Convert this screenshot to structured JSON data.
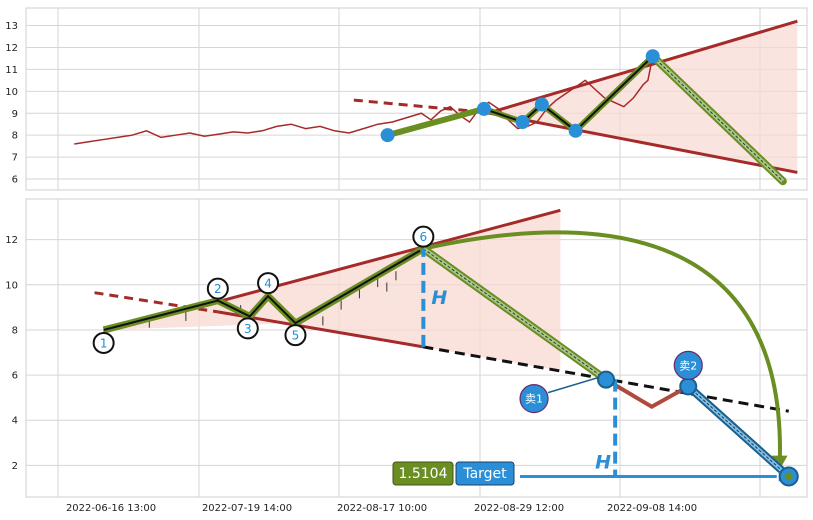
{
  "chart_data": [
    {
      "type": "line",
      "panel": "top",
      "ylim": [
        5.5,
        13.8
      ],
      "yticks": [
        6,
        7,
        8,
        9,
        10,
        11,
        12,
        13
      ],
      "grid": true,
      "price_series": [
        [
          0,
          7.6
        ],
        [
          3,
          7.7
        ],
        [
          6,
          7.8
        ],
        [
          9,
          7.9
        ],
        [
          12,
          8.0
        ],
        [
          15,
          8.2
        ],
        [
          18,
          7.9
        ],
        [
          21,
          8.0
        ],
        [
          24,
          8.1
        ],
        [
          27,
          7.95
        ],
        [
          30,
          8.05
        ],
        [
          33,
          8.15
        ],
        [
          36,
          8.1
        ],
        [
          39,
          8.2
        ],
        [
          42,
          8.4
        ],
        [
          45,
          8.5
        ],
        [
          48,
          8.3
        ],
        [
          51,
          8.4
        ],
        [
          54,
          8.2
        ],
        [
          57,
          8.1
        ],
        [
          60,
          8.3
        ],
        [
          63,
          8.5
        ],
        [
          66,
          8.6
        ],
        [
          69,
          8.8
        ],
        [
          72,
          9.0
        ],
        [
          74,
          8.7
        ],
        [
          76,
          9.1
        ],
        [
          78,
          9.3
        ],
        [
          80,
          8.9
        ],
        [
          82,
          8.6
        ],
        [
          84,
          9.2
        ],
        [
          86,
          9.5
        ],
        [
          88,
          9.2
        ],
        [
          90,
          8.7
        ],
        [
          92,
          8.3
        ],
        [
          94,
          8.4
        ],
        [
          96,
          8.6
        ],
        [
          98,
          9.2
        ],
        [
          100,
          9.6
        ],
        [
          102,
          9.9
        ],
        [
          104,
          10.2
        ],
        [
          106,
          10.5
        ],
        [
          108,
          10.1
        ],
        [
          110,
          9.7
        ],
        [
          112,
          9.5
        ],
        [
          114,
          9.3
        ],
        [
          116,
          9.7
        ],
        [
          118,
          10.3
        ],
        [
          119,
          10.5
        ],
        [
          120,
          11.6
        ]
      ],
      "pattern_points": [
        [
          65,
          8.0
        ],
        [
          85,
          9.2
        ],
        [
          93,
          8.6
        ],
        [
          97,
          9.4
        ],
        [
          104,
          8.2
        ],
        [
          120,
          11.6
        ]
      ],
      "projection": [
        [
          120,
          11.6
        ],
        [
          147,
          5.9
        ]
      ],
      "upper_line": [
        [
          85,
          8.95
        ],
        [
          150,
          13.2
        ]
      ],
      "lower_line": [
        [
          85,
          9.05
        ],
        [
          150,
          6.3
        ]
      ],
      "lower_extension": [
        [
          58,
          9.6
        ],
        [
          85,
          9.05
        ]
      ]
    },
    {
      "type": "line",
      "panel": "bottom",
      "ylim": [
        0.6,
        13.8
      ],
      "yticks": [
        2,
        4,
        6,
        8,
        10,
        12
      ],
      "grid": true,
      "xtick_labels": [
        "2022-06-16 13:00",
        "2022-07-19 14:00",
        "2022-08-17 10:00",
        "2022-08-29 12:00",
        "2022-09-08 14:00"
      ],
      "pattern_points": [
        {
          "label": "1",
          "x": 0,
          "y": 8.0
        },
        {
          "label": "2",
          "x": 25,
          "y": 9.3
        },
        {
          "label": "3",
          "x": 32,
          "y": 8.6
        },
        {
          "label": "4",
          "x": 36,
          "y": 9.5
        },
        {
          "label": "5",
          "x": 42,
          "y": 8.3
        },
        {
          "label": "6",
          "x": 70,
          "y": 11.6
        }
      ],
      "upper_line": [
        [
          0,
          7.9
        ],
        [
          100,
          13.3
        ]
      ],
      "lower_line": [
        [
          -2,
          9.65
        ],
        [
          70,
          7.25
        ]
      ],
      "dashed_support": [
        [
          70,
          7.25
        ],
        [
          150,
          4.4
        ]
      ],
      "sell_path": [
        [
          70,
          11.6
        ],
        [
          110,
          5.8
        ]
      ],
      "drop_path": [
        [
          110,
          5.8
        ],
        [
          120,
          4.6
        ],
        [
          128,
          5.5
        ]
      ],
      "target_path": [
        [
          128,
          5.5
        ],
        [
          150,
          1.5
        ]
      ],
      "arc": {
        "from": [
          70,
          11.6
        ],
        "to": [
          148,
          1.9
        ]
      },
      "h_marker_1": {
        "x": 70,
        "y1": 7.25,
        "y2": 11.6,
        "label": "H"
      },
      "h_marker_2": {
        "x": 112,
        "y1": 5.8,
        "y2": 1.5,
        "label": "H"
      },
      "sell_markers": [
        {
          "label": "卖1",
          "x": 110,
          "y": 5.8
        },
        {
          "label": "卖2",
          "x": 128,
          "y": 5.5
        }
      ],
      "target": {
        "value": 1.5104,
        "value_label": "1.5104",
        "label": "Target"
      },
      "colors": {
        "upper": "#a52a2a",
        "pattern": "#6b8e23",
        "sell": "#4aa8e0",
        "drop": "#b04a3c",
        "marker": "#2a8fd6",
        "fill": "#f8d8d2"
      }
    }
  ]
}
